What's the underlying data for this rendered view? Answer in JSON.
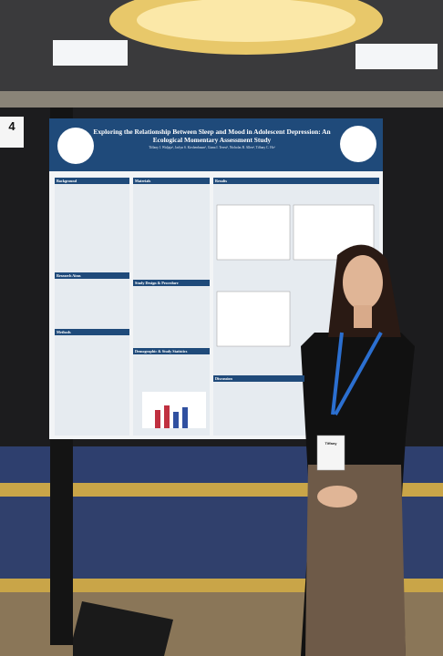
{
  "board_number": "4",
  "poster": {
    "title": "Exploring the Relationship Between Sleep and Mood in Adolescent Depression: An Ecological Momentary Assessment Study",
    "authors": "Tiffany I. Widjaja¹, Jaclyn S. Kirshenbaum², Giana I. Teresi³, Nicholas B. Allen⁴, Tiffany C. Ho¹",
    "sections": [
      "Background",
      "Research Aims",
      "Methods",
      "Materials",
      "Study Design & Procedure",
      "Demographic & Study Statistics",
      "Results",
      "Discussion"
    ]
  },
  "badge": {
    "name": "Tiffany"
  }
}
